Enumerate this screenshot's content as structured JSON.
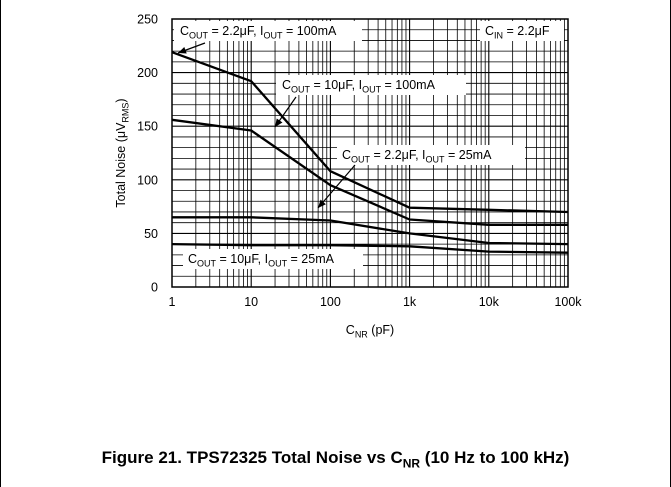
{
  "figure": {
    "caption_prefix": "Figure 21. TPS72325 Total Noise vs C",
    "caption_sub": "NR",
    "caption_suffix": " (10 Hz to 100 kHz)"
  },
  "chart_data": {
    "type": "line",
    "x_scale": "log",
    "xlim": [
      1,
      100000
    ],
    "ylim": [
      0,
      250
    ],
    "grid": true,
    "xlabel": {
      "main": "C",
      "sub": "NR",
      "rest": " (pF)"
    },
    "ylabel": {
      "main": "Total Noise (μV",
      "sub": "RMS",
      "rest": ")"
    },
    "x_ticks": [
      1,
      10,
      100,
      1000,
      10000,
      100000
    ],
    "x_tick_labels": [
      "1",
      "10",
      "100",
      "1k",
      "10k",
      "100k"
    ],
    "y_ticks": [
      0,
      50,
      100,
      150,
      200,
      250
    ],
    "y_tick_labels": [
      "0",
      "50",
      "100",
      "150",
      "200",
      "250"
    ],
    "series": [
      {
        "parts": [
          {
            "t": "C"
          },
          {
            "s": "OUT"
          },
          {
            "t": " = 2.2μF, I"
          },
          {
            "s": "OUT"
          },
          {
            "t": " = 100mA"
          }
        ],
        "x": [
          1,
          10,
          100,
          1000,
          10000,
          100000
        ],
        "y": [
          219,
          192,
          108,
          74,
          72,
          70
        ]
      },
      {
        "parts": [
          {
            "t": "C"
          },
          {
            "s": "OUT"
          },
          {
            "t": " = 10μF, I"
          },
          {
            "s": "OUT"
          },
          {
            "t": " = 100mA"
          }
        ],
        "x": [
          1,
          10,
          100,
          1000,
          10000,
          100000
        ],
        "y": [
          156,
          146,
          95,
          63,
          58,
          58
        ]
      },
      {
        "parts": [
          {
            "t": "C"
          },
          {
            "s": "OUT"
          },
          {
            "t": " = 2.2μF, I"
          },
          {
            "s": "OUT"
          },
          {
            "t": " = 25mA"
          }
        ],
        "x": [
          1,
          10,
          100,
          1000,
          10000,
          100000
        ],
        "y": [
          65,
          65,
          62,
          50,
          41,
          40
        ]
      },
      {
        "parts": [
          {
            "t": "C"
          },
          {
            "s": "OUT"
          },
          {
            "t": " = 10μF, I"
          },
          {
            "s": "OUT"
          },
          {
            "t": " = 25mA"
          }
        ],
        "x": [
          1,
          10,
          100,
          1000,
          10000,
          100000
        ],
        "y": [
          40,
          39,
          39,
          38,
          33,
          32
        ]
      }
    ],
    "annotations": [
      {
        "parts": [
          {
            "t": "C"
          },
          {
            "s": "IN"
          },
          {
            "t": " = 2.2μF"
          }
        ]
      }
    ]
  }
}
